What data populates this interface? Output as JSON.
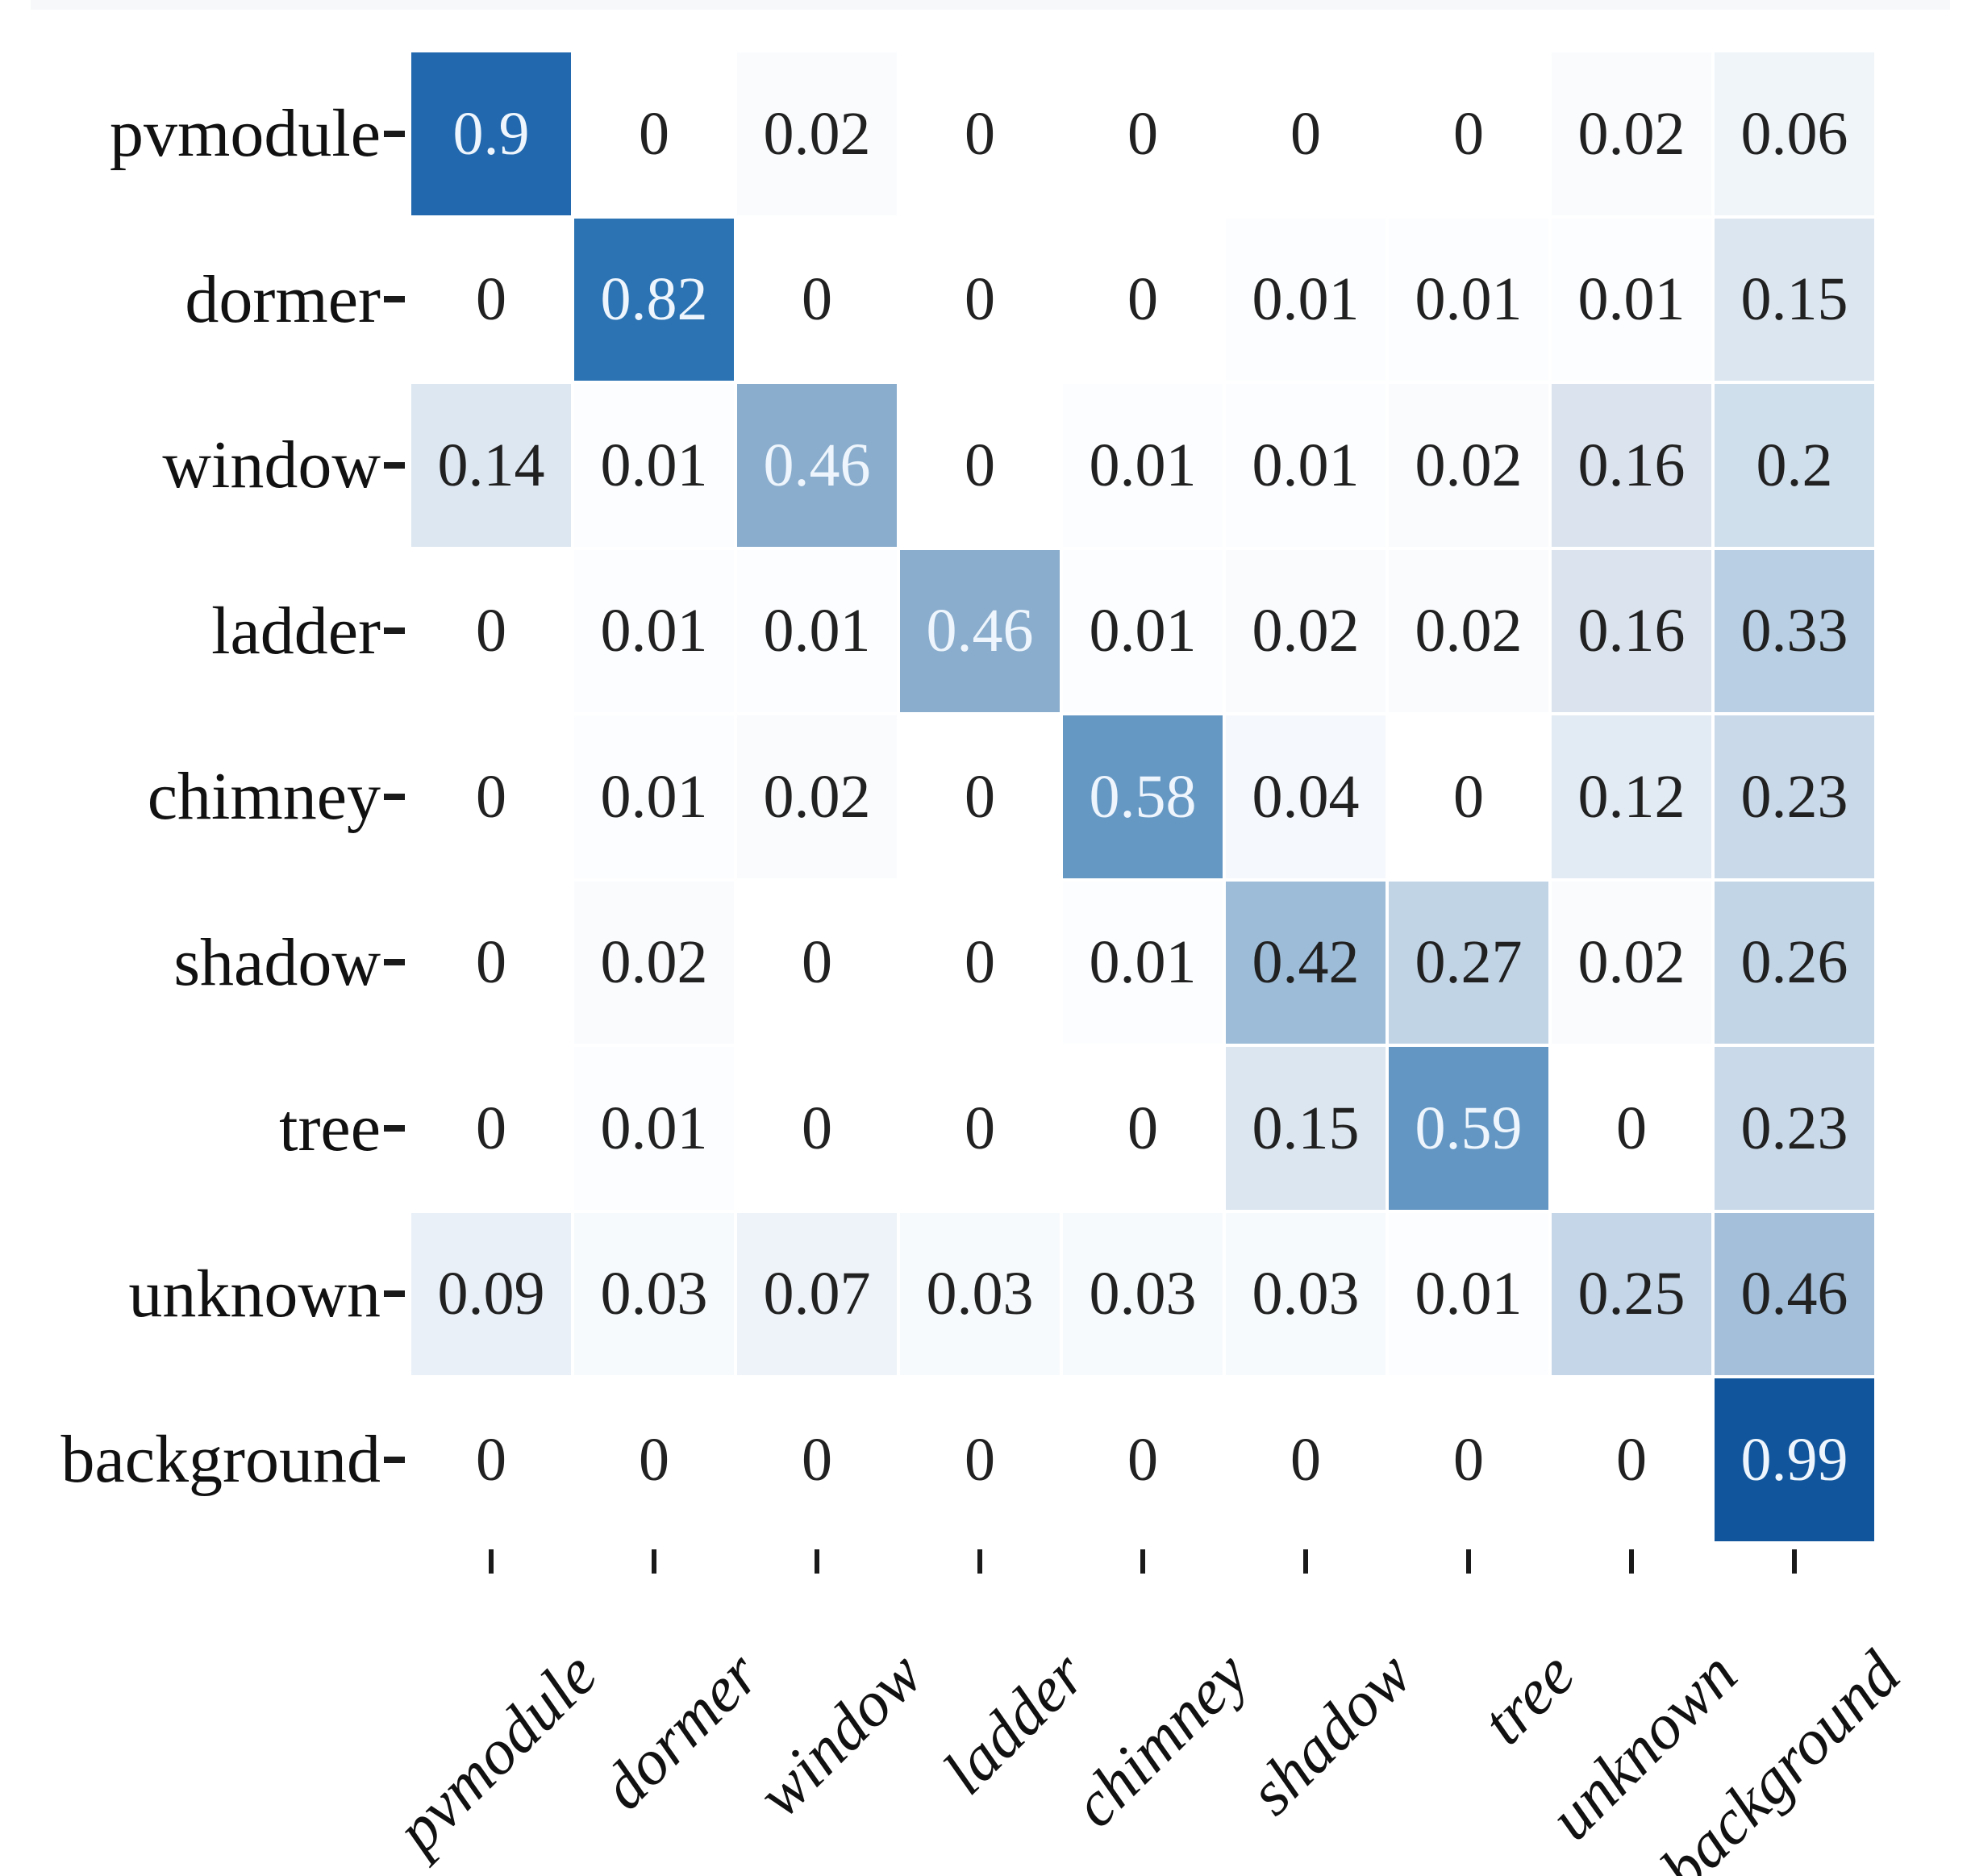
{
  "chart_data": {
    "type": "heatmap",
    "title": "",
    "description": "Row-normalized confusion matrix, Blues colormap, no colorbar",
    "row_labels": [
      "pvmodule",
      "dormer",
      "window",
      "ladder",
      "chimney",
      "shadow",
      "tree",
      "unknown",
      "background"
    ],
    "col_labels": [
      "pvmodule",
      "dormer",
      "window",
      "ladder",
      "chimney",
      "shadow",
      "tree",
      "unknown",
      "background"
    ],
    "rows": [
      {
        "label": "pvmodule",
        "values": [
          0.9,
          0,
          0.02,
          0,
          0,
          0,
          0,
          0.02,
          0.06
        ]
      },
      {
        "label": "dormer",
        "values": [
          0,
          0.82,
          0,
          0,
          0,
          0.01,
          0.01,
          0.01,
          0.15
        ]
      },
      {
        "label": "window",
        "values": [
          0.14,
          0.01,
          0.46,
          0,
          0.01,
          0.01,
          0.02,
          0.16,
          0.2
        ]
      },
      {
        "label": "ladder",
        "values": [
          0,
          0.01,
          0.01,
          0.46,
          0.01,
          0.02,
          0.02,
          0.16,
          0.33
        ]
      },
      {
        "label": "chimney",
        "values": [
          0,
          0.01,
          0.02,
          0,
          0.58,
          0.04,
          0,
          0.12,
          0.23
        ]
      },
      {
        "label": "shadow",
        "values": [
          0,
          0.02,
          0,
          0,
          0.01,
          0.42,
          0.27,
          0.02,
          0.26
        ]
      },
      {
        "label": "tree",
        "values": [
          0,
          0.01,
          0,
          0,
          0,
          0.15,
          0.59,
          0,
          0.23
        ]
      },
      {
        "label": "unknown",
        "values": [
          0.09,
          0.03,
          0.07,
          0.03,
          0.03,
          0.03,
          0.01,
          0.25,
          0.46
        ]
      },
      {
        "label": "background",
        "values": [
          0,
          0,
          0,
          0,
          0,
          0,
          0,
          0,
          0.99
        ]
      }
    ],
    "value_range": [
      0,
      1
    ],
    "colormap": "Blues",
    "color_stops": [
      {
        "v": 0.0,
        "color": "#ffffff"
      },
      {
        "v": 0.02,
        "color": "#f9fbfd"
      },
      {
        "v": 0.06,
        "color": "#f0f5fa"
      },
      {
        "v": 0.09,
        "color": "#e9f0f7"
      },
      {
        "v": 0.12,
        "color": "#e2eaf3"
      },
      {
        "v": 0.14,
        "color": "#dde7f1"
      },
      {
        "v": 0.16,
        "color": "#dbe4ee"
      },
      {
        "v": 0.2,
        "color": "#d0dfec"
      },
      {
        "v": 0.23,
        "color": "#c9d9e9"
      },
      {
        "v": 0.26,
        "color": "#c2d5e7"
      },
      {
        "v": 0.33,
        "color": "#b9cfe3"
      },
      {
        "v": 0.42,
        "color": "#9cbcd8"
      },
      {
        "v": 0.46,
        "color": "#8aadcd"
      },
      {
        "v": 0.58,
        "color": "#6698c4"
      },
      {
        "v": 0.7,
        "color": "#4680b7"
      },
      {
        "v": 0.82,
        "color": "#2b73b3"
      },
      {
        "v": 0.9,
        "color": "#2168ae"
      },
      {
        "v": 0.99,
        "color": "#11569d"
      },
      {
        "v": 1.0,
        "color": "#10559c"
      }
    ],
    "cell_color_overrides": {
      "7,8": "#a3bfda"
    },
    "light_text_cells": [
      [
        0,
        0
      ],
      [
        1,
        1
      ],
      [
        2,
        2
      ],
      [
        3,
        3
      ],
      [
        4,
        4
      ],
      [
        6,
        6
      ],
      [
        8,
        8
      ]
    ],
    "text_color_dark": "#212121",
    "text_color_light": "#eef5fc",
    "tick_color": "#1a1a1a",
    "x_tick_rotation_deg": 45,
    "grid": false,
    "legend": "none"
  }
}
